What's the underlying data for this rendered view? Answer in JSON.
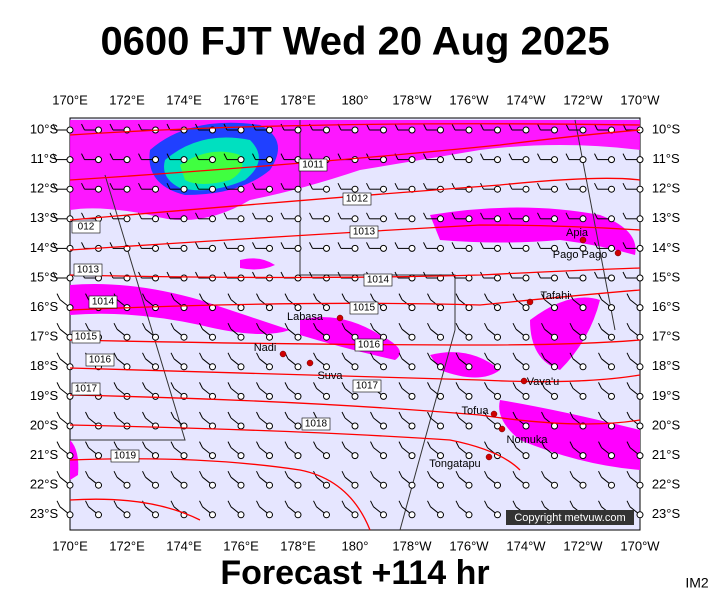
{
  "title": "0600 FJT Wed 20 Aug 2025",
  "lon_labels": [
    "170°E",
    "172°E",
    "174°E",
    "176°E",
    "178°E",
    "180°",
    "178°W",
    "176°W",
    "174°W",
    "172°W",
    "170°W"
  ],
  "lat_labels": [
    "10°S",
    "11°S",
    "12°S",
    "13°S",
    "14°S",
    "15°S",
    "16°S",
    "17°S",
    "18°S",
    "19°S",
    "20°S",
    "21°S",
    "22°S",
    "23°S"
  ],
  "places": [
    "Apia",
    "Pago Pago",
    "Tafahi",
    "Labasa",
    "Nadi",
    "Suva",
    "Vava'u",
    "Tofua",
    "Nomuka",
    "Tongatapu"
  ],
  "isobar_labels": [
    "1011",
    "1012",
    "1013",
    "1014",
    "1015",
    "1016",
    "1017",
    "1018",
    "1019",
    "012",
    "1013",
    "1014",
    "1015",
    "1016",
    "1017"
  ],
  "copyright": "Copyright metvuw.com",
  "footer": "Forecast +114 hr",
  "corner_label": "IM2"
}
